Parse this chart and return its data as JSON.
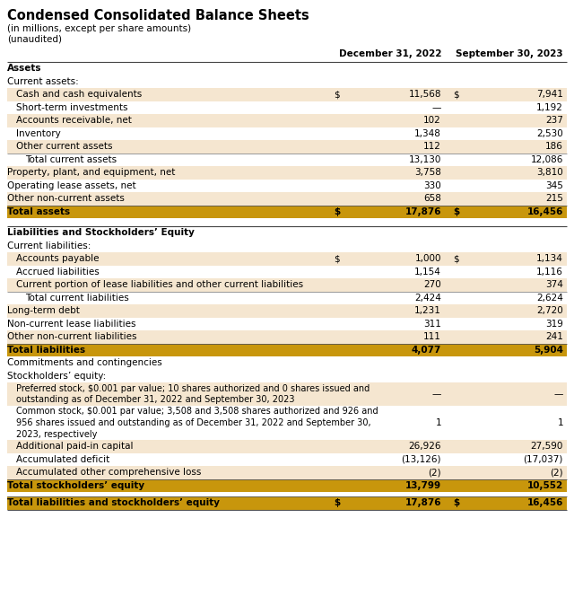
{
  "title": "Condensed Consolidated Balance Sheets",
  "subtitle1": "(in millions, except per share amounts)",
  "subtitle2": "(unaudited)",
  "col1_header": "December 31, 2022",
  "col2_header": "September 30, 2023",
  "bg_color": "#FFFFFF",
  "light_row_color": "#F5E6D0",
  "total_row_color": "#C8960C",
  "rows": [
    {
      "label": "Assets",
      "val1": "",
      "val2": "",
      "style": "section_header",
      "indent": 0
    },
    {
      "label": "Current assets:",
      "val1": "",
      "val2": "",
      "style": "subheader",
      "indent": 0
    },
    {
      "label": "Cash and cash equivalents",
      "val1": "11,568",
      "val2": "7,941",
      "style": "shaded",
      "indent": 1,
      "dollar1": true,
      "dollar2": true
    },
    {
      "label": "Short-term investments",
      "val1": "—",
      "val2": "1,192",
      "style": "plain",
      "indent": 1
    },
    {
      "label": "Accounts receivable, net",
      "val1": "102",
      "val2": "237",
      "style": "shaded",
      "indent": 1
    },
    {
      "label": "Inventory",
      "val1": "1,348",
      "val2": "2,530",
      "style": "plain",
      "indent": 1
    },
    {
      "label": "Other current assets",
      "val1": "112",
      "val2": "186",
      "style": "shaded",
      "indent": 1
    },
    {
      "label": "Total current assets",
      "val1": "13,130",
      "val2": "12,086",
      "style": "subtotal",
      "indent": 2
    },
    {
      "label": "Property, plant, and equipment, net",
      "val1": "3,758",
      "val2": "3,810",
      "style": "shaded",
      "indent": 0
    },
    {
      "label": "Operating lease assets, net",
      "val1": "330",
      "val2": "345",
      "style": "plain",
      "indent": 0
    },
    {
      "label": "Other non-current assets",
      "val1": "658",
      "val2": "215",
      "style": "shaded",
      "indent": 0
    },
    {
      "label": "Total assets",
      "val1": "17,876",
      "val2": "16,456",
      "style": "total",
      "indent": 0,
      "dollar1": true,
      "dollar2": true
    },
    {
      "label": "",
      "val1": "",
      "val2": "",
      "style": "spacer",
      "indent": 0
    },
    {
      "label": "Liabilities and Stockholders’ Equity",
      "val1": "",
      "val2": "",
      "style": "section_header",
      "indent": 0
    },
    {
      "label": "Current liabilities:",
      "val1": "",
      "val2": "",
      "style": "subheader",
      "indent": 0
    },
    {
      "label": "Accounts payable",
      "val1": "1,000",
      "val2": "1,134",
      "style": "shaded",
      "indent": 1,
      "dollar1": true,
      "dollar2": true
    },
    {
      "label": "Accrued liabilities",
      "val1": "1,154",
      "val2": "1,116",
      "style": "plain",
      "indent": 1
    },
    {
      "label": "Current portion of lease liabilities and other current liabilities",
      "val1": "270",
      "val2": "374",
      "style": "shaded",
      "indent": 1
    },
    {
      "label": "Total current liabilities",
      "val1": "2,424",
      "val2": "2,624",
      "style": "subtotal",
      "indent": 2
    },
    {
      "label": "Long-term debt",
      "val1": "1,231",
      "val2": "2,720",
      "style": "shaded",
      "indent": 0
    },
    {
      "label": "Non-current lease liabilities",
      "val1": "311",
      "val2": "319",
      "style": "plain",
      "indent": 0
    },
    {
      "label": "Other non-current liabilities",
      "val1": "111",
      "val2": "241",
      "style": "shaded",
      "indent": 0
    },
    {
      "label": "Total liabilities",
      "val1": "4,077",
      "val2": "5,904",
      "style": "total",
      "indent": 0
    },
    {
      "label": "Commitments and contingencies",
      "val1": "",
      "val2": "",
      "style": "plain",
      "indent": 0
    },
    {
      "label": "Stockholders’ equity:",
      "val1": "",
      "val2": "",
      "style": "subheader",
      "indent": 0
    },
    {
      "label": "Preferred stock, $0.001 par value; 10 shares authorized and 0 shares issued and\noutstanding as of December 31, 2022 and September 30, 2023",
      "val1": "—",
      "val2": "—",
      "style": "shaded_multi",
      "indent": 1,
      "nlines": 2
    },
    {
      "label": "Common stock, $0.001 par value; 3,508 and 3,508 shares authorized and 926 and\n956 shares issued and outstanding as of December 31, 2022 and September 30,\n2023, respectively",
      "val1": "1",
      "val2": "1",
      "style": "plain_multi",
      "indent": 1,
      "nlines": 3
    },
    {
      "label": "Additional paid-in capital",
      "val1": "26,926",
      "val2": "27,590",
      "style": "shaded",
      "indent": 1
    },
    {
      "label": "Accumulated deficit",
      "val1": "(13,126)",
      "val2": "(17,037)",
      "style": "plain",
      "indent": 1
    },
    {
      "label": "Accumulated other comprehensive loss",
      "val1": "(2)",
      "val2": "(2)",
      "style": "shaded",
      "indent": 1
    },
    {
      "label": "Total stockholders’ equity",
      "val1": "13,799",
      "val2": "10,552",
      "style": "total",
      "indent": 0
    },
    {
      "label": "",
      "val1": "",
      "val2": "",
      "style": "spacer_small",
      "indent": 0
    },
    {
      "label": "Total liabilities and stockholders’ equity",
      "val1": "17,876",
      "val2": "16,456",
      "style": "total_final",
      "indent": 0,
      "dollar1": true,
      "dollar2": true
    }
  ]
}
